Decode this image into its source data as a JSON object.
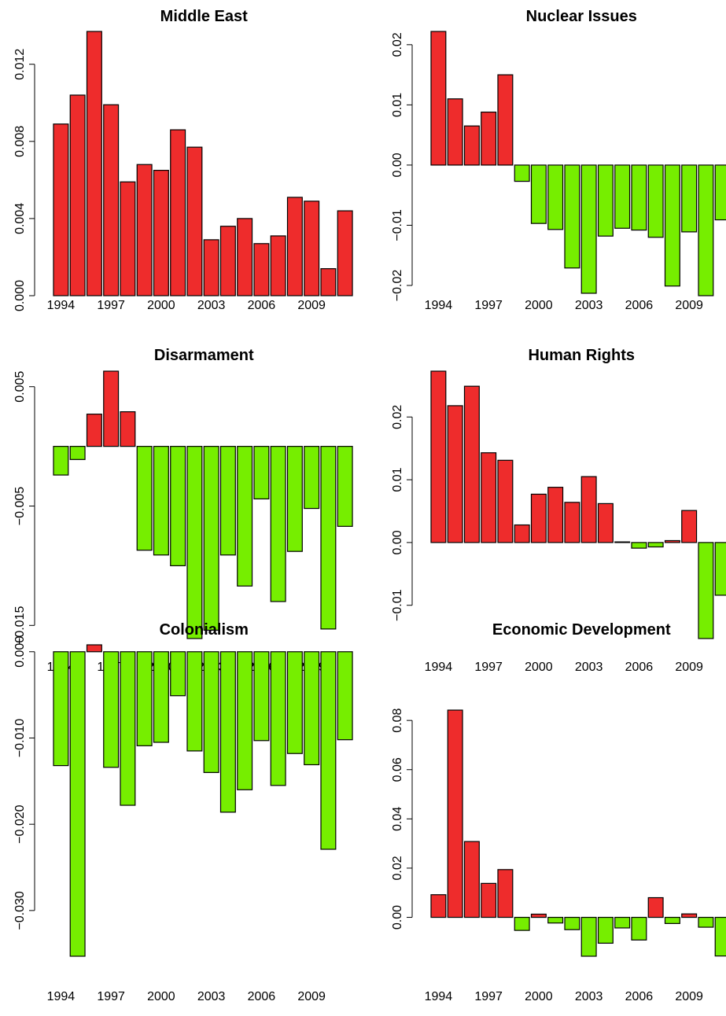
{
  "colors": {
    "positive": "#EE2C2C",
    "negative": "#76EE00"
  },
  "chart_data": [
    {
      "type": "bar",
      "title": "Middle East",
      "categories": [
        "1994",
        "1995",
        "1996",
        "1997",
        "1998",
        "1999",
        "2000",
        "2001",
        "2002",
        "2003",
        "2004",
        "2005",
        "2006",
        "2007",
        "2008",
        "2009",
        "2010",
        "2011"
      ],
      "x_tick_labels": [
        "1994",
        "1997",
        "2000",
        "2003",
        "2006",
        "2009"
      ],
      "values": [
        0.0089,
        0.0104,
        0.0137,
        0.0099,
        0.0059,
        0.0068,
        0.0065,
        0.0086,
        0.0077,
        0.0029,
        0.0036,
        0.004,
        0.0027,
        0.0031,
        0.0051,
        0.0049,
        0.0014,
        0.0044
      ],
      "y_ticks": [
        0.0,
        0.004,
        0.008,
        0.012
      ],
      "y_tick_labels": [
        "0.000",
        "0.004",
        "0.008",
        "0.012"
      ],
      "ylim": [
        0,
        0.0137
      ]
    },
    {
      "type": "bar",
      "title": "Nuclear Issues",
      "categories": [
        "1994",
        "1995",
        "1996",
        "1997",
        "1998",
        "1999",
        "2000",
        "2001",
        "2002",
        "2003",
        "2004",
        "2005",
        "2006",
        "2007",
        "2008",
        "2009",
        "2010",
        "2011"
      ],
      "x_tick_labels": [
        "1994",
        "1997",
        "2000",
        "2003",
        "2006",
        "2009"
      ],
      "values": [
        0.0222,
        0.011,
        0.0065,
        0.0088,
        0.015,
        -0.0027,
        -0.0097,
        -0.0107,
        -0.0171,
        -0.0213,
        -0.0118,
        -0.0105,
        -0.0108,
        -0.012,
        -0.0201,
        -0.0111,
        -0.0217,
        -0.0091
      ],
      "y_ticks": [
        -0.02,
        -0.01,
        0.0,
        0.01,
        0.02
      ],
      "y_tick_labels": [
        "−0.02",
        "−0.01",
        "0.00",
        "0.01",
        "0.02"
      ],
      "ylim": [
        -0.0217,
        0.0222
      ]
    },
    {
      "type": "bar",
      "title": "Disarmament",
      "categories": [
        "1994",
        "1995",
        "1996",
        "1997",
        "1998",
        "1999",
        "2000",
        "2001",
        "2002",
        "2003",
        "2004",
        "2005",
        "2006",
        "2007",
        "2008",
        "2009",
        "2010",
        "2011"
      ],
      "x_tick_labels": [
        "1994",
        "1997",
        "2000",
        "2003",
        "2006",
        "2009"
      ],
      "values": [
        -0.0024,
        -0.0011,
        0.0027,
        0.0063,
        0.0029,
        -0.0087,
        -0.0091,
        -0.01,
        -0.0161,
        -0.0154,
        -0.0091,
        -0.0117,
        -0.0044,
        -0.013,
        -0.0088,
        -0.0052,
        -0.0153,
        -0.0067
      ],
      "y_ticks": [
        -0.015,
        -0.005,
        0.005
      ],
      "y_tick_labels": [
        "−0.015",
        "−0.005",
        "0.005"
      ],
      "ylim": [
        -0.0161,
        0.0063
      ]
    },
    {
      "type": "bar",
      "title": "Human Rights",
      "categories": [
        "1994",
        "1995",
        "1996",
        "1997",
        "1998",
        "1999",
        "2000",
        "2001",
        "2002",
        "2003",
        "2004",
        "2005",
        "2006",
        "2007",
        "2008",
        "2009",
        "2010",
        "2011"
      ],
      "x_tick_labels": [
        "1994",
        "1997",
        "2000",
        "2003",
        "2006",
        "2009"
      ],
      "values": [
        0.0273,
        0.0218,
        0.0249,
        0.0143,
        0.0131,
        0.0028,
        0.0077,
        0.0088,
        0.0064,
        0.0105,
        0.0062,
        0.0001,
        -0.0009,
        -0.0007,
        0.0003,
        0.0051,
        -0.0153,
        -0.0084
      ],
      "y_ticks": [
        -0.01,
        0.0,
        0.01,
        0.02
      ],
      "y_tick_labels": [
        "−0.01",
        "0.00",
        "0.01",
        "0.02"
      ],
      "ylim": [
        -0.0153,
        0.0273
      ]
    },
    {
      "type": "bar",
      "title": "Colonialism",
      "categories": [
        "1994",
        "1995",
        "1996",
        "1997",
        "1998",
        "1999",
        "2000",
        "2001",
        "2002",
        "2003",
        "2004",
        "2005",
        "2006",
        "2007",
        "2008",
        "2009",
        "2010",
        "2011"
      ],
      "x_tick_labels": [
        "1994",
        "1997",
        "2000",
        "2003",
        "2006",
        "2009"
      ],
      "values": [
        -0.0132,
        -0.0353,
        0.0008,
        -0.0134,
        -0.0178,
        -0.0109,
        -0.0105,
        -0.0051,
        -0.0115,
        -0.014,
        -0.0186,
        -0.016,
        -0.0103,
        -0.0155,
        -0.0118,
        -0.0131,
        -0.0229,
        -0.0102
      ],
      "y_ticks": [
        -0.03,
        -0.02,
        -0.01,
        0.0
      ],
      "y_tick_labels": [
        "−0.030",
        "−0.020",
        "−0.010",
        "0.000"
      ],
      "ylim": [
        -0.0353,
        0.0008
      ]
    },
    {
      "type": "bar",
      "title": "Economic Development",
      "categories": [
        "1994",
        "1995",
        "1996",
        "1997",
        "1998",
        "1999",
        "2000",
        "2001",
        "2002",
        "2003",
        "2004",
        "2005",
        "2006",
        "2007",
        "2008",
        "2009",
        "2010",
        "2011"
      ],
      "x_tick_labels": [
        "1994",
        "1997",
        "2000",
        "2003",
        "2006",
        "2009"
      ],
      "values": [
        0.0092,
        0.0842,
        0.0308,
        0.0138,
        0.0194,
        -0.0053,
        0.0013,
        -0.0023,
        -0.005,
        -0.0158,
        -0.0105,
        -0.0043,
        -0.0092,
        0.008,
        -0.0025,
        0.0014,
        -0.004,
        -0.0157
      ],
      "y_ticks": [
        0.0,
        0.02,
        0.04,
        0.06,
        0.08
      ],
      "y_tick_labels": [
        "0.00",
        "0.02",
        "0.04",
        "0.06",
        "0.08"
      ],
      "ylim": [
        -0.0158,
        0.0842
      ]
    }
  ]
}
